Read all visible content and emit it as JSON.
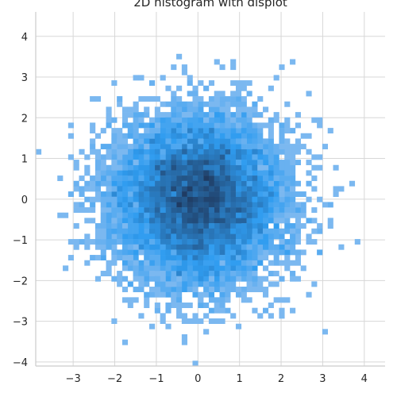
{
  "chart_data": {
    "type": "heatmap",
    "kind": "2d-histogram",
    "title": "2D histogram with displot",
    "xlabel": "",
    "ylabel": "",
    "xlim": [
      -3.9,
      4.5
    ],
    "ylim": [
      -4.1,
      4.6
    ],
    "xticks": [
      -3,
      -2,
      -1,
      0,
      1,
      2,
      3,
      4
    ],
    "yticks": [
      -4,
      -3,
      -2,
      -1,
      0,
      1,
      2,
      3,
      4
    ],
    "grid": true,
    "colormap": {
      "low": "#a8c8f0",
      "mid": "#2f9cf0",
      "high": "#1f3a60"
    },
    "distribution": {
      "type": "bivariate-normal",
      "mean_x": 0.0,
      "mean_y": 0.0,
      "std_x": 1.0,
      "std_y": 1.0,
      "bin_width": 0.13
    }
  }
}
